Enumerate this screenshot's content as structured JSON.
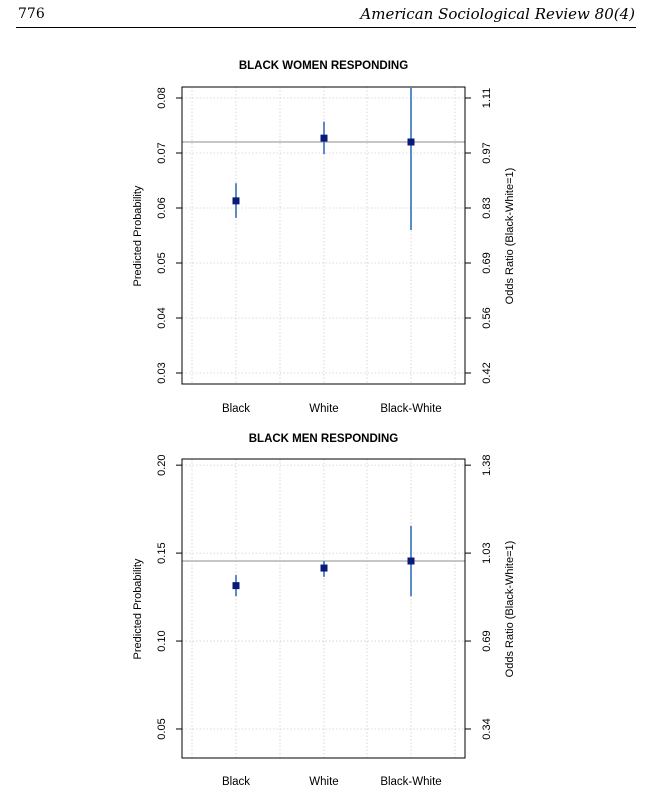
{
  "header": {
    "page_number": "776",
    "journal_title": "American Sociological Review 80(4)"
  },
  "colors": {
    "point": "#0a1a7a",
    "ci": "#4a7fc0",
    "refline": "#b3b3b3",
    "grid": "#cfcfcf"
  },
  "chart_data": [
    {
      "type": "scatter",
      "title": "BLACK WOMEN RESPONDING",
      "ylabel": "Predicted Probability",
      "ylabel_right": "Odds Ratio (Black-White=1)",
      "categories": [
        "Black",
        "White",
        "Black-White"
      ],
      "ylim": [
        0.028,
        0.082
      ],
      "yticks": [
        0.03,
        0.04,
        0.05,
        0.06,
        0.07,
        0.08
      ],
      "ytick_labels": [
        "0.03",
        "0.04",
        "0.05",
        "0.06",
        "0.07",
        "0.08"
      ],
      "yticks_right_pos": [
        0.03,
        0.04,
        0.05,
        0.06,
        0.07,
        0.08
      ],
      "yticks_right_labels": [
        "0.42",
        "0.56",
        "0.69",
        "0.83",
        "0.97",
        "1.11"
      ],
      "reference_line": 0.072,
      "points": [
        {
          "category": "Black",
          "value": 0.0613,
          "lower": 0.0582,
          "upper": 0.0645
        },
        {
          "category": "White",
          "value": 0.0727,
          "lower": 0.0698,
          "upper": 0.0757
        },
        {
          "category": "Black-White",
          "value": 0.072,
          "lower": 0.056,
          "upper": 0.082
        }
      ]
    },
    {
      "type": "scatter",
      "title": "BLACK MEN RESPONDING",
      "ylabel": "Predicted Probability",
      "ylabel_right": "Odds Ratio (Black-White=1)",
      "categories": [
        "Black",
        "White",
        "Black-White"
      ],
      "ylim": [
        0.0335,
        0.2035
      ],
      "yticks": [
        0.05,
        0.1,
        0.15,
        0.2
      ],
      "ytick_labels": [
        "0.05",
        "0.10",
        "0.15",
        "0.20"
      ],
      "yticks_right_pos": [
        0.05,
        0.1,
        0.15,
        0.2
      ],
      "yticks_right_labels": [
        "0.34",
        "0.69",
        "1.03",
        "1.38"
      ],
      "reference_line": 0.1455,
      "points": [
        {
          "category": "Black",
          "value": 0.1315,
          "lower": 0.1255,
          "upper": 0.1375
        },
        {
          "category": "White",
          "value": 0.1415,
          "lower": 0.1365,
          "upper": 0.1455
        },
        {
          "category": "Black-White",
          "value": 0.1455,
          "lower": 0.1255,
          "upper": 0.1655
        }
      ]
    }
  ]
}
